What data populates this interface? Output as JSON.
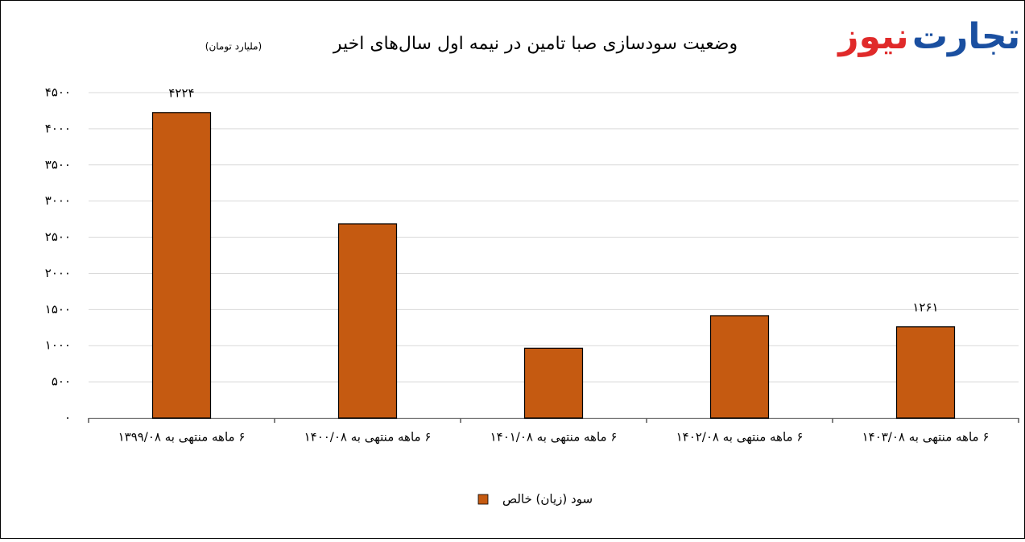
{
  "logo": {
    "first": "تجارت",
    "second": "نیوز"
  },
  "chart_data": {
    "type": "bar",
    "title": "وضعیت سودسازی صبا تامین در نیمه اول سال‌های اخیر",
    "subtitle": "(ملیارد تومان)",
    "categories": [
      "۶ ماهه منتهی به ۱۳۹۹/۰۸",
      "۶ ماهه منتهی به ۱۴۰۰/۰۸",
      "۶ ماهه منتهی به ۱۴۰۱/۰۸",
      "۶ ماهه منتهی به ۱۴۰۲/۰۸",
      "۶ ماهه منتهی به ۱۴۰۳/۰۸"
    ],
    "series": [
      {
        "name": "سود (زیان) خالص",
        "color": "#c55a11",
        "values": [
          4224,
          2685,
          965,
          1415,
          1261
        ],
        "value_labels": [
          "۴۲۲۴",
          null,
          null,
          null,
          "۱۲۶۱"
        ]
      }
    ],
    "ylim": [
      0,
      4500
    ],
    "yticks": [
      {
        "value": 0,
        "label": "۰"
      },
      {
        "value": 500,
        "label": "۵۰۰"
      },
      {
        "value": 1000,
        "label": "۱۰۰۰"
      },
      {
        "value": 1500,
        "label": "۱۵۰۰"
      },
      {
        "value": 2000,
        "label": "۲۰۰۰"
      },
      {
        "value": 2500,
        "label": "۲۵۰۰"
      },
      {
        "value": 3000,
        "label": "۳۰۰۰"
      },
      {
        "value": 3500,
        "label": "۳۵۰۰"
      },
      {
        "value": 4000,
        "label": "۴۰۰۰"
      },
      {
        "value": 4500,
        "label": "۴۵۰۰"
      }
    ],
    "grid": true
  }
}
